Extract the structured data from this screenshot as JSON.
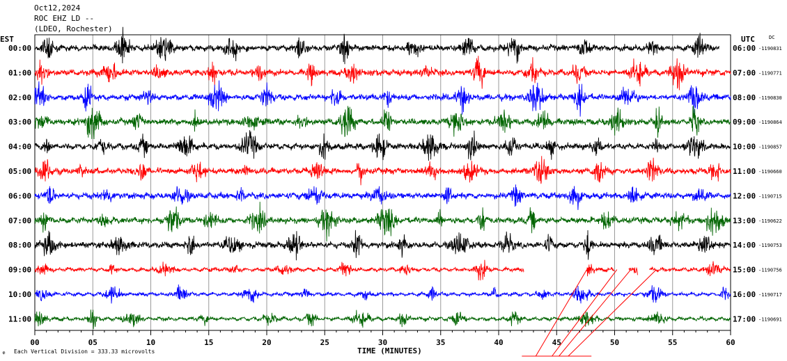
{
  "header": {
    "date": "Oct12,2024",
    "station": "ROC EHZ LD --",
    "network": "(LDEO, Rochester)"
  },
  "left_zone": "EST",
  "right_zone": "UTC",
  "dc_label": "DC",
  "footer": {
    "scale_note": "Each Vertical Division =  333.33 microvolts",
    "corner_mark": "⚘"
  },
  "chart_data": {
    "type": "line",
    "title": "",
    "xlabel": "TIME (MINUTES)",
    "ylabel": "",
    "xlim": [
      0,
      60
    ],
    "x_ticks": [
      "00",
      "05",
      "10",
      "15",
      "20",
      "25",
      "30",
      "35",
      "40",
      "45",
      "50",
      "55",
      "60"
    ],
    "x_tick_step": 1,
    "grid": true,
    "rows": [
      {
        "left": "00:00",
        "right": "06:00",
        "dc": "-1190831",
        "color": "#000000",
        "end_minute": 59,
        "gaps": []
      },
      {
        "left": "01:00",
        "right": "07:00",
        "dc": "-1190771",
        "color": "#ff0000",
        "end_minute": 60,
        "gaps": []
      },
      {
        "left": "02:00",
        "right": "08:00",
        "dc": "-1190830",
        "color": "#0000ff",
        "end_minute": 60,
        "gaps": []
      },
      {
        "left": "03:00",
        "right": "09:00",
        "dc": "-1190864",
        "color": "#006400",
        "end_minute": 60,
        "gaps": []
      },
      {
        "left": "04:00",
        "right": "10:00",
        "dc": "-1190857",
        "color": "#000000",
        "end_minute": 60,
        "gaps": []
      },
      {
        "left": "05:00",
        "right": "11:00",
        "dc": "-1190660",
        "color": "#ff0000",
        "end_minute": 60,
        "gaps": []
      },
      {
        "left": "06:00",
        "right": "12:00",
        "dc": "-1190715",
        "color": "#0000ff",
        "end_minute": 60,
        "gaps": []
      },
      {
        "left": "07:00",
        "right": "13:00",
        "dc": "-1190622",
        "color": "#006400",
        "end_minute": 60,
        "gaps": []
      },
      {
        "left": "08:00",
        "right": "14:00",
        "dc": "-1190753",
        "color": "#000000",
        "end_minute": 60,
        "gaps": []
      },
      {
        "left": "09:00",
        "right": "15:00",
        "dc": "-1190756",
        "color": "#ff0000",
        "end_minute": 60,
        "gaps": [
          [
            42.2,
            47.6
          ],
          [
            50.0,
            51.2
          ],
          [
            52.0,
            53.0
          ]
        ]
      },
      {
        "left": "10:00",
        "right": "16:00",
        "dc": "-1190717",
        "color": "#0000ff",
        "end_minute": 60,
        "gaps": []
      },
      {
        "left": "11:00",
        "right": "17:00",
        "dc": "-1190691",
        "color": "#006400",
        "end_minute": 60,
        "gaps": []
      }
    ],
    "annotation_lines_color": "#ff0000"
  }
}
